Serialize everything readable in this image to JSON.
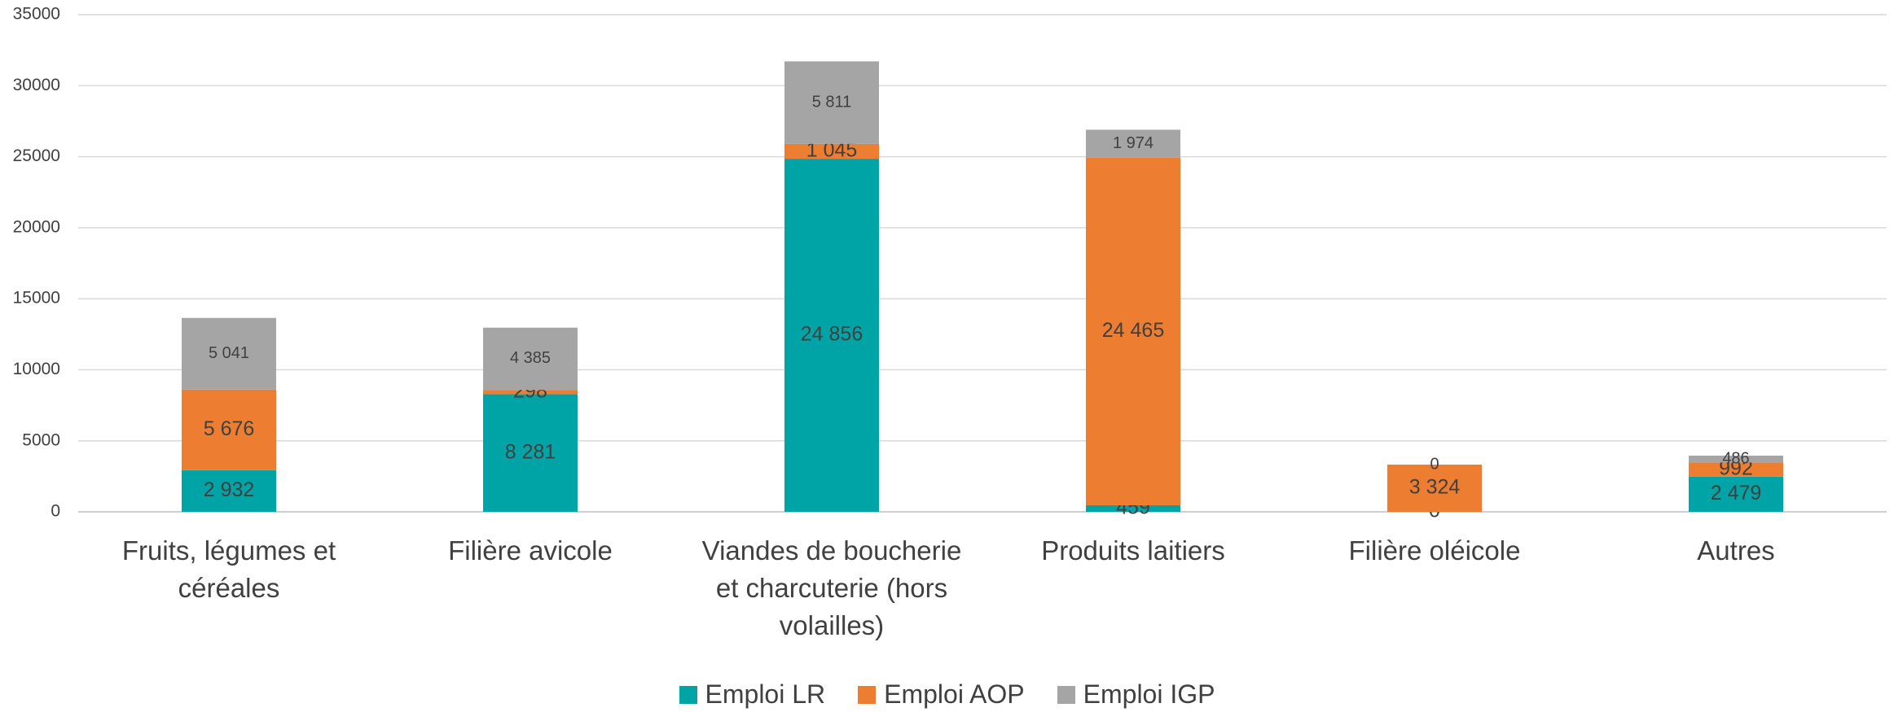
{
  "chart_data": {
    "type": "stacked_bar",
    "categories": [
      "Fruits, légumes et céréales",
      "Filière avicole",
      "Viandes de boucherie et charcuterie (hors volailles)",
      "Produits laitiers",
      "Filière oléicole",
      "Autres"
    ],
    "series": [
      {
        "name": "Emploi LR",
        "color": "#00a4a6",
        "values": [
          2932,
          8281,
          24856,
          459,
          0,
          2479
        ],
        "value_labels": [
          "2 932",
          "8 281",
          "24 856",
          "459",
          "0",
          "2 479"
        ]
      },
      {
        "name": "Emploi AOP",
        "color": "#ed7d31",
        "values": [
          5676,
          298,
          1045,
          24465,
          3324,
          992
        ],
        "value_labels": [
          "5 676",
          "298",
          "1 045",
          "24 465",
          "3 324",
          "992"
        ]
      },
      {
        "name": "Emploi IGP",
        "color": "#a5a5a5",
        "values": [
          5041,
          4385,
          5811,
          1974,
          0,
          486
        ],
        "value_labels": [
          "5 041",
          "4 385",
          "5 811",
          "1 974",
          "0",
          "486"
        ]
      }
    ],
    "ylim": [
      0,
      35000
    ],
    "yticks": [
      0,
      5000,
      10000,
      15000,
      20000,
      25000,
      30000,
      35000
    ],
    "grid": true,
    "legend": "bottom"
  }
}
